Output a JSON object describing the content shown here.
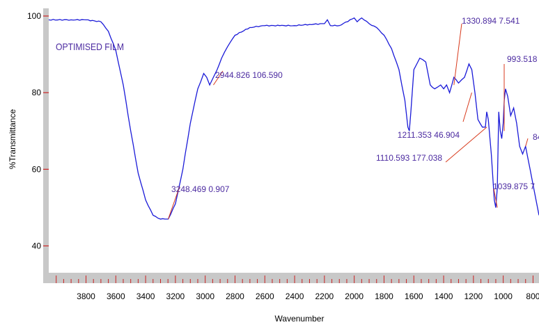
{
  "chart_data": {
    "type": "line",
    "title": "OPTIMISED FILM",
    "xlabel": "Wavenumber",
    "ylabel": "%Transmittance",
    "xlim": [
      4050,
      760
    ],
    "ylim": [
      33,
      102
    ],
    "x_ticks": [
      3800,
      3600,
      3400,
      3200,
      3000,
      2800,
      2600,
      2400,
      2200,
      2000,
      1800,
      1600,
      1400,
      1200,
      1000,
      800
    ],
    "y_ticks": [
      40,
      60,
      80,
      100
    ],
    "grid": false,
    "series": [
      {
        "x": [
          4050,
          3900,
          3800,
          3700,
          3650,
          3600,
          3550,
          3500,
          3450,
          3400,
          3350,
          3300,
          3270,
          3248,
          3200,
          3150,
          3100,
          3050,
          3010,
          2990,
          2970,
          2945,
          2920,
          2890,
          2850,
          2800,
          2700,
          2600,
          2500,
          2400,
          2300,
          2200,
          2180,
          2160,
          2100,
          2000,
          1980,
          1950,
          1900,
          1850,
          1800,
          1750,
          1700,
          1660,
          1640,
          1630,
          1620,
          1600,
          1560,
          1520,
          1490,
          1460,
          1420,
          1400,
          1380,
          1360,
          1331,
          1300,
          1260,
          1230,
          1211,
          1190,
          1170,
          1140,
          1120,
          1111,
          1100,
          1080,
          1060,
          1050,
          1040,
          1030,
          1020,
          1010,
          1000,
          993,
          985,
          970,
          950,
          930,
          910,
          890,
          870,
          850,
          820,
          800,
          780,
          760
        ],
        "y": [
          99,
          99,
          99,
          98.5,
          96,
          91,
          82,
          70,
          59,
          52,
          48,
          47,
          47,
          47,
          51,
          60,
          72,
          81,
          85,
          84,
          82,
          84,
          86,
          89,
          92,
          95,
          97,
          97.5,
          97.5,
          97.5,
          97.8,
          98,
          99,
          97.5,
          97.5,
          99.5,
          98.5,
          99.5,
          98,
          97,
          95,
          91.5,
          86,
          78,
          71,
          70,
          75,
          86,
          89,
          88,
          82,
          81,
          82,
          81,
          82,
          80,
          84,
          82.5,
          84,
          87.5,
          86,
          80,
          73,
          71,
          71,
          75,
          73,
          64,
          52,
          50,
          55,
          75,
          70,
          68,
          72,
          78,
          81,
          79,
          74,
          76,
          72,
          66,
          64,
          66,
          60,
          56,
          52,
          48
        ]
      }
    ],
    "annotations": [
      {
        "text": "2944.826  106.590",
        "x": 2944.826,
        "y": 82
      },
      {
        "text": "3248.469  0.907",
        "x": 3248.469,
        "y": 47
      },
      {
        "text": "1330.894  7.541",
        "x": 1330.894,
        "y": 82
      },
      {
        "text": "993.518",
        "x": 993.518,
        "y": 70
      },
      {
        "text": "1211.353  46.904",
        "x": 1211.353,
        "y": 80
      },
      {
        "text": "84",
        "x": 850,
        "y": 66
      },
      {
        "text": "1110.593  177.038",
        "x": 1110.593,
        "y": 71
      },
      {
        "text": "1039.875  7",
        "x": 1039.875,
        "y": 50
      }
    ]
  },
  "colors": {
    "line": "#1a1ad8",
    "label": "#4b2aa0",
    "leader": "#d83a1c",
    "frame": "#c8c8c8",
    "tick": "#cc2222"
  }
}
